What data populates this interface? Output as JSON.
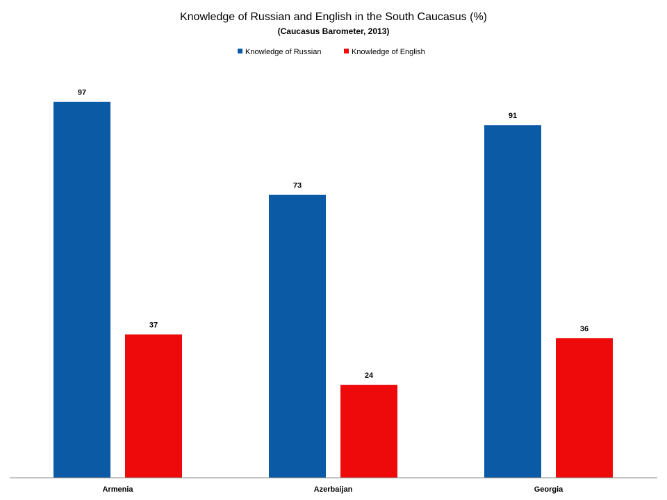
{
  "chart_data": {
    "type": "bar",
    "title": "Knowledge of Russian and English in the South Caucasus (%)",
    "subtitle": "(Caucasus Barometer, 2013)",
    "categories": [
      "Armenia",
      "Azerbaijan",
      "Georgia"
    ],
    "series": [
      {
        "name": "Knowledge of Russian",
        "color": "#0A5AA6",
        "values": [
          97,
          73,
          91
        ]
      },
      {
        "name": "Knowledge of English",
        "color": "#EE0A0A",
        "values": [
          37,
          24,
          36
        ]
      }
    ],
    "xlabel": "",
    "ylabel": "",
    "ylim": [
      0,
      100
    ],
    "grid": false,
    "legend": "top-center",
    "data_labels": true
  }
}
